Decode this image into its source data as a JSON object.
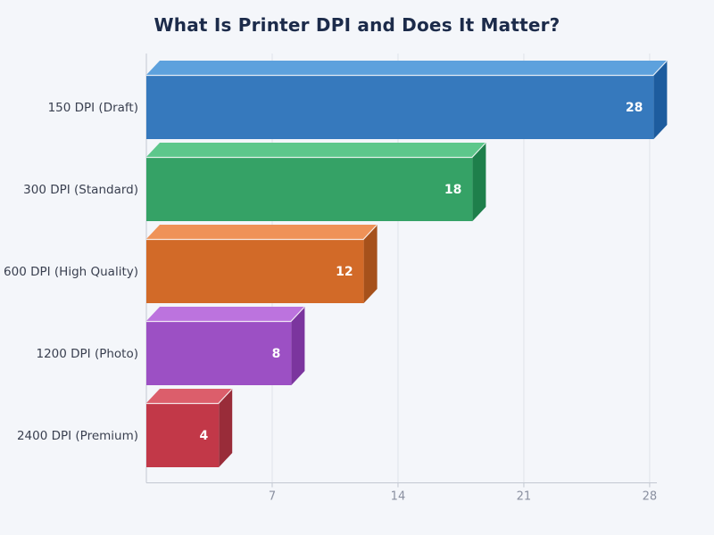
{
  "page": {
    "background": "#f4f6fa"
  },
  "chart_data": {
    "type": "bar",
    "orientation": "horizontal",
    "effect": "3d",
    "title": "What Is Printer DPI and Does It Matter?",
    "categories": [
      "150 DPI (Draft)",
      "300 DPI (Standard)",
      "600 DPI (High Quality)",
      "1200 DPI (Photo)",
      "2400 DPI (Premium)"
    ],
    "values": [
      28,
      18,
      12,
      8,
      4
    ],
    "value_labels": [
      "28",
      "18",
      "12",
      "8",
      "4"
    ],
    "x_ticks": [
      7,
      14,
      21,
      28
    ],
    "xlim": [
      0,
      28
    ],
    "grid": true,
    "legend": false,
    "colors": {
      "title": "#1c2b4a",
      "category_label": "#3a4050",
      "value_label": "#ffffff",
      "tick_label": "#8a90a0",
      "gridline": "#e0e3ea",
      "axis": "#c3c8d2",
      "background": "#f4f6fa"
    },
    "bar_colors": [
      {
        "front": "#3679bd",
        "top": "#5da1dd",
        "side": "#1d5c9e"
      },
      {
        "front": "#35a266",
        "top": "#5dc78b",
        "side": "#1e7f4b"
      },
      {
        "front": "#d26a28",
        "top": "#ef9257",
        "side": "#a6511b"
      },
      {
        "front": "#9c50c4",
        "top": "#bc73de",
        "side": "#7b359e"
      },
      {
        "front": "#c23848",
        "top": "#dc5e6b",
        "side": "#992c39"
      }
    ]
  }
}
